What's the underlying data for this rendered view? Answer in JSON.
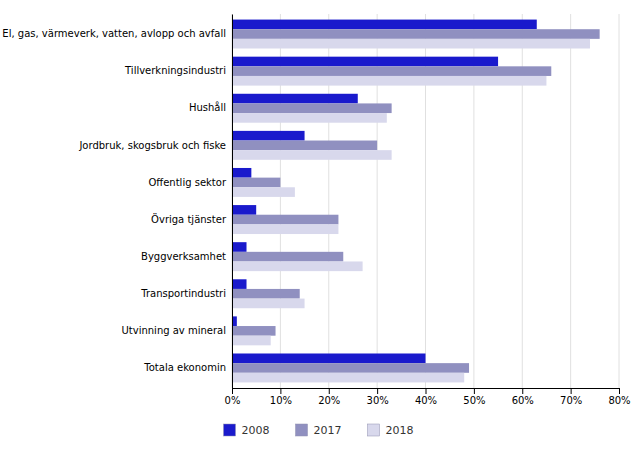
{
  "chart_data": {
    "type": "bar",
    "orientation": "horizontal",
    "categories": [
      "Totala ekonomin",
      "Utvinning av mineral",
      "Transportindustri",
      "Byggverksamhet",
      "Övriga tjänster",
      "Offentlig sektor",
      "Jordbruk, skogsbruk och fiske",
      "Hushåll",
      "Tillverkningsindustri",
      "El, gas, värmeverk, vatten, avlopp och avfall"
    ],
    "series": [
      {
        "name": "2008",
        "color": "#1a1acc",
        "values": [
          0.4,
          0.01,
          0.03,
          0.03,
          0.05,
          0.04,
          0.15,
          0.26,
          0.55,
          0.63
        ]
      },
      {
        "name": "2017",
        "color": "#9090c0",
        "values": [
          0.49,
          0.09,
          0.14,
          0.23,
          0.22,
          0.1,
          0.3,
          0.33,
          0.66,
          0.76
        ]
      },
      {
        "name": "2018",
        "color": "#d8d8ec",
        "values": [
          0.48,
          0.08,
          0.15,
          0.27,
          0.22,
          0.13,
          0.33,
          0.32,
          0.65,
          0.74
        ]
      }
    ],
    "xlim": [
      0,
      0.8
    ],
    "xticks": [
      {
        "value": 0,
        "label": "0%"
      },
      {
        "value": 0.1,
        "label": "10%"
      },
      {
        "value": 0.2,
        "label": "20%"
      },
      {
        "value": 0.3,
        "label": "30%"
      },
      {
        "value": 0.4,
        "label": "40%"
      },
      {
        "value": 0.5,
        "label": "50%"
      },
      {
        "value": 0.6,
        "label": "60%"
      },
      {
        "value": 0.7,
        "label": "70%"
      },
      {
        "value": 0.8,
        "label": "80%"
      }
    ],
    "grid": true,
    "legend": "bottom"
  }
}
